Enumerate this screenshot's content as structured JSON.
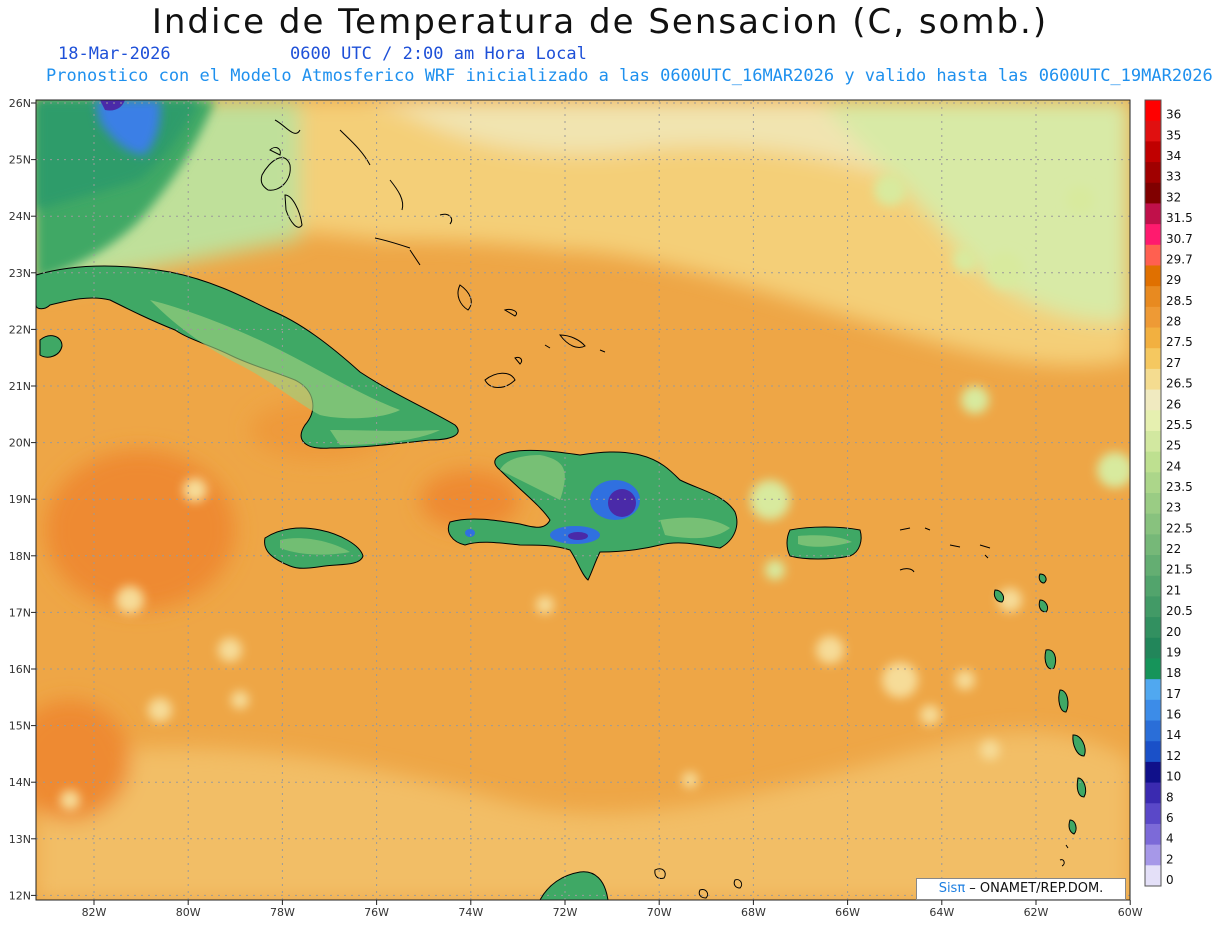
{
  "header": {
    "title": "Indice de Temperatura de Sensacion (C, somb.)",
    "date": "18-Mar-2026",
    "time": "0600 UTC / 2:00 am Hora Local",
    "model_line": "Pronostico con el Modelo Atmosferico WRF inicializado a las 0600UTC_16MAR2026 y valido hasta las  0600UTC_19MAR2026"
  },
  "axes": {
    "lat_labels": [
      "26N",
      "25N",
      "24N",
      "23N",
      "22N",
      "21N",
      "20N",
      "19N",
      "18N",
      "17N",
      "16N",
      "15N",
      "14N",
      "13N",
      "12N"
    ],
    "lon_labels": [
      "82W",
      "80W",
      "78W",
      "76W",
      "74W",
      "72W",
      "70W",
      "68W",
      "66W",
      "64W",
      "62W",
      "60W"
    ]
  },
  "colorbar": {
    "labels": [
      "36",
      "35",
      "34",
      "33",
      "32",
      "31.5",
      "30.7",
      "29.7",
      "29",
      "28.5",
      "28",
      "27.5",
      "27",
      "26.5",
      "26",
      "25.5",
      "25",
      "24",
      "23.5",
      "23",
      "22.5",
      "22",
      "21.5",
      "21",
      "20.5",
      "20",
      "19",
      "18",
      "17",
      "16",
      "14",
      "12",
      "10",
      "8",
      "6",
      "4",
      "2",
      "0"
    ],
    "colors": [
      "#ff0000",
      "#e01010",
      "#c00000",
      "#a00000",
      "#800000",
      "#c0104a",
      "#ff1a6e",
      "#ff6050",
      "#e07000",
      "#e88a20",
      "#ee9a35",
      "#f2b040",
      "#f5c860",
      "#f4dc90",
      "#f0eac0",
      "#e6f0b0",
      "#d2e8a0",
      "#bee090",
      "#acd68a",
      "#9acc84",
      "#88c27e",
      "#76b878",
      "#64ae72",
      "#52a46c",
      "#429a66",
      "#329060",
      "#22865a",
      "#16945a",
      "#50a8f0",
      "#3c8ce8",
      "#2a6ed8",
      "#1a50c8",
      "#10108a",
      "#3a2ab0",
      "#5a48c8",
      "#7c6ad8",
      "#a698e8",
      "#e4e0f8"
    ]
  },
  "credit": {
    "logo": "Sisπ",
    "text": " – ONAMET/REP.DOM."
  },
  "legend_colors": {
    "ocean_warm": "#eea646",
    "ocean_hot": "#ee8a30",
    "ocean_mild": "#f4c870",
    "north_cool": "#f2e6b8",
    "land_green": "#3fa865",
    "land_light": "#9cd080",
    "mountain_blue": "#3070e0",
    "mountain_purple": "#4a2aa8"
  }
}
